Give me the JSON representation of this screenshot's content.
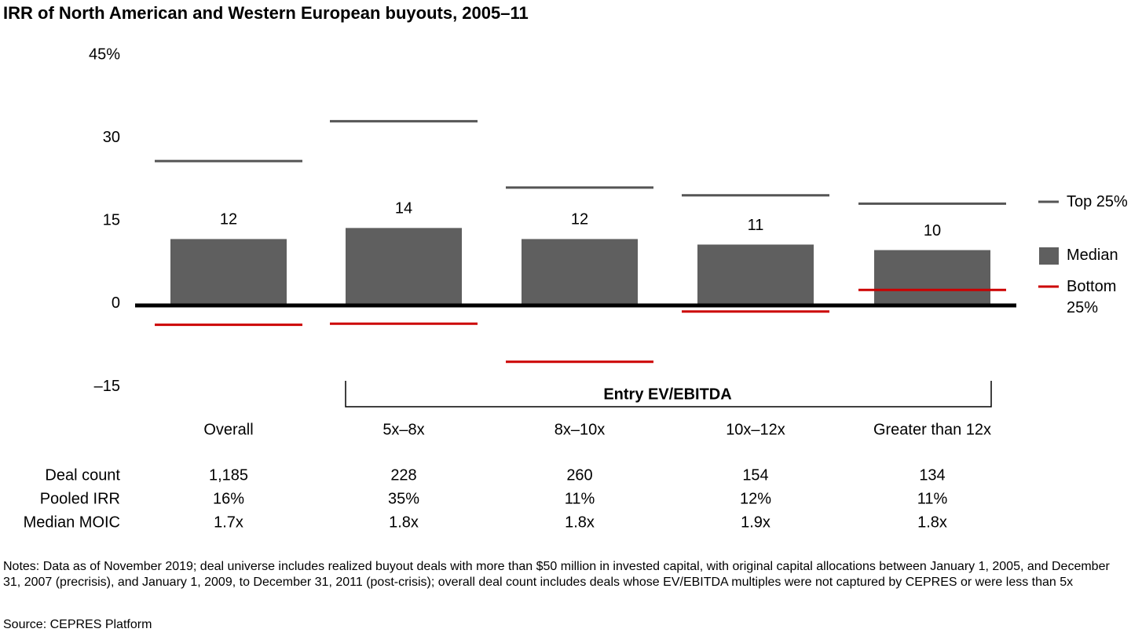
{
  "chart_data": {
    "type": "bar",
    "title": "IRR of North American and Western European buyouts, 2005–11",
    "categories": [
      "Overall",
      "5x–8x",
      "8x–10x",
      "10x–12x",
      "Greater than 12x"
    ],
    "group_label": "Entry EV/EBITDA",
    "ylim": [
      -15,
      45
    ],
    "yticks": [
      {
        "value": -15,
        "label": "–15"
      },
      0,
      15,
      30,
      {
        "value": 45,
        "label": "45%"
      }
    ],
    "series": [
      {
        "name": "Top 25%",
        "kind": "tick",
        "color": "#555555",
        "values": [
          26.1,
          33.3,
          21.3,
          19.9,
          18.4
        ]
      },
      {
        "name": "Median",
        "kind": "bar",
        "color": "#5f5f5f",
        "values": [
          12,
          14,
          12,
          11,
          10
        ]
      },
      {
        "name": "Bottom 25%",
        "kind": "tick",
        "color": "#cc0000",
        "values": [
          -3.5,
          -3.3,
          -10.2,
          -1.1,
          2.8
        ]
      }
    ],
    "table": [
      {
        "label": "Deal count",
        "values": [
          "1,185",
          "228",
          "260",
          "154",
          "134"
        ]
      },
      {
        "label": "Pooled IRR",
        "values": [
          "16%",
          "35%",
          "11%",
          "12%",
          "11%"
        ]
      },
      {
        "label": "Median MOIC",
        "values": [
          "1.7x",
          "1.8x",
          "1.8x",
          "1.9x",
          "1.8x"
        ]
      }
    ],
    "notes": "Notes: Data as of November 2019; deal universe includes realized buyout deals with more than $50 million in invested capital, with original capital allocations between January 1, 2005, and December 31, 2007 (precrisis), and January 1, 2009, to December 31, 2011 (post-crisis); overall deal count includes deals whose EV/EBITDA multiples were not captured by CEPRES or were less than 5x",
    "source": "Source: CEPRES Platform"
  }
}
